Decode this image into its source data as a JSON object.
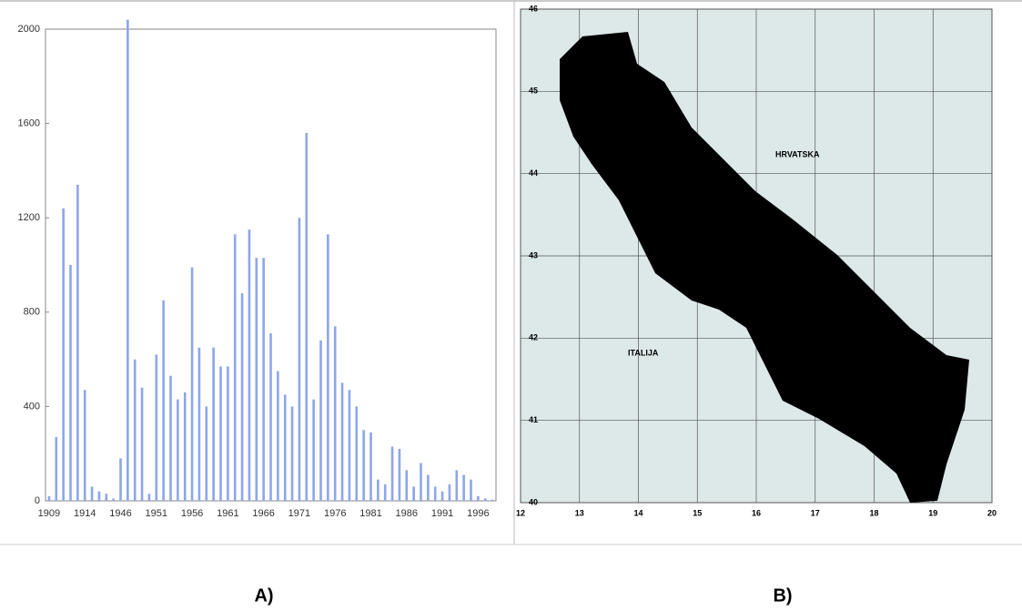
{
  "chart_data": [
    {
      "type": "bar",
      "categories": [
        "1909",
        null,
        null,
        null,
        null,
        "1914",
        null,
        null,
        null,
        null,
        "1946",
        null,
        null,
        null,
        null,
        "1951",
        null,
        null,
        null,
        null,
        "1956",
        null,
        null,
        null,
        null,
        "1961",
        null,
        null,
        null,
        null,
        "1966",
        null,
        null,
        null,
        null,
        "1971",
        null,
        null,
        null,
        null,
        "1976",
        null,
        null,
        null,
        null,
        "1981",
        null,
        null,
        null,
        null,
        "1986",
        null,
        null,
        null,
        null,
        "1991",
        null,
        null,
        null,
        null,
        "1996",
        null,
        null
      ],
      "values": [
        20,
        270,
        1240,
        1000,
        1340,
        470,
        60,
        40,
        30,
        10,
        180,
        2040,
        600,
        480,
        30,
        620,
        850,
        530,
        430,
        460,
        990,
        650,
        400,
        650,
        570,
        570,
        1130,
        880,
        1150,
        1030,
        1030,
        710,
        550,
        450,
        400,
        1200,
        1560,
        430,
        680,
        1130,
        740,
        500,
        470,
        400,
        300,
        290,
        90,
        70,
        230,
        220,
        130,
        60,
        160,
        110,
        60,
        40,
        70,
        130,
        110,
        90,
        20,
        10,
        5
      ],
      "color": "#8ea6ea",
      "ylim": [
        0,
        2000
      ],
      "yticks": [
        0,
        400,
        800,
        1200,
        1600,
        2000
      ],
      "grid": false,
      "caption": "A)"
    },
    {
      "type": "map",
      "xlim": [
        12,
        20
      ],
      "xticks": [
        12,
        13,
        14,
        15,
        16,
        17,
        18,
        19,
        20
      ],
      "ylim": [
        40,
        46
      ],
      "yticks": [
        40,
        41,
        42,
        43,
        44,
        45,
        46
      ],
      "grid": true,
      "annotations": [
        "HRVATSKA",
        "ITALIJA"
      ],
      "caption": "B)"
    }
  ]
}
